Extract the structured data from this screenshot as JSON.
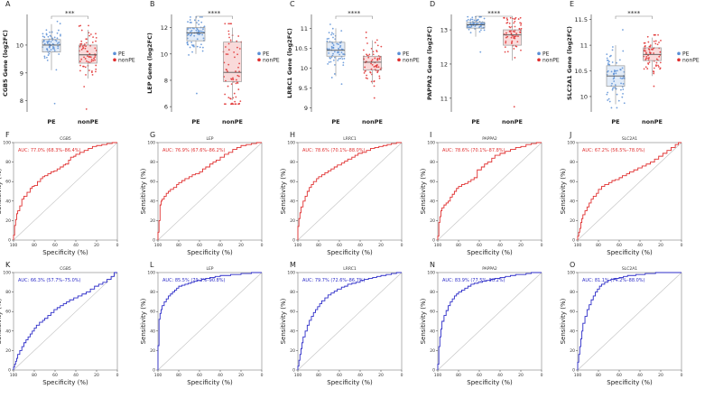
{
  "colors": {
    "pe": "#5b8fd6",
    "nonpe": "#e03030",
    "roc_red": "#e03030",
    "roc_blue": "#2d2dc8",
    "diag": "#c0c0c0",
    "axis": "#333333",
    "box": "#9a9a9a"
  },
  "chart_data": [
    {
      "panel": "A",
      "type": "box",
      "gene": "CGB5",
      "ylabel": "CGB5 Gene (log2FC)",
      "categories": [
        "PE",
        "nonPE"
      ],
      "yticks": [
        8,
        9,
        10
      ],
      "ylim": [
        7.6,
        11.1
      ],
      "series": [
        {
          "name": "PE",
          "q1": 9.75,
          "median": 10.0,
          "q3": 10.2,
          "low": 9.1,
          "high": 10.75,
          "min": 7.9,
          "max": 10.85
        },
        {
          "name": "nonPE",
          "q1": 9.35,
          "median": 9.65,
          "q3": 10.0,
          "low": 8.8,
          "high": 10.55,
          "min": 7.7,
          "max": 10.7
        }
      ],
      "significance": "***",
      "legend": [
        "PE",
        "nonPE"
      ]
    },
    {
      "panel": "B",
      "type": "box",
      "gene": "LEP",
      "ylabel": "LEP Gene (log2FC)",
      "categories": [
        "PE",
        "nonPE"
      ],
      "yticks": [
        6,
        8,
        10,
        12
      ],
      "ylim": [
        5.6,
        13.0
      ],
      "series": [
        {
          "name": "PE",
          "q1": 11.0,
          "median": 11.6,
          "q3": 12.0,
          "low": 10.0,
          "high": 12.7,
          "min": 7.0,
          "max": 12.8
        },
        {
          "name": "nonPE",
          "q1": 7.9,
          "median": 8.6,
          "q3": 10.9,
          "low": 6.5,
          "high": 12.0,
          "min": 6.2,
          "max": 12.3
        }
      ],
      "significance": "****",
      "legend": [
        "PE",
        "nonPE"
      ]
    },
    {
      "panel": "C",
      "type": "box",
      "gene": "LRRC1",
      "ylabel": "LRRC1 Gene (log2FC)",
      "categories": [
        "PE",
        "nonPE"
      ],
      "yticks": [
        9.0,
        9.5,
        10.0,
        10.5,
        11.0
      ],
      "ylim": [
        8.9,
        11.35
      ],
      "series": [
        {
          "name": "PE",
          "q1": 10.3,
          "median": 10.45,
          "q3": 10.65,
          "low": 9.8,
          "high": 11.0,
          "min": 9.6,
          "max": 11.1
        },
        {
          "name": "nonPE",
          "q1": 9.95,
          "median": 10.15,
          "q3": 10.3,
          "low": 9.6,
          "high": 10.7,
          "min": 9.25,
          "max": 10.9
        }
      ],
      "significance": "****",
      "legend": [
        "PE",
        "nonPE"
      ]
    },
    {
      "panel": "D",
      "type": "box",
      "gene": "PAPPA2",
      "ylabel": "PAPPA2 Gene (log2FC)",
      "categories": [
        "PE",
        "nonPE"
      ],
      "yticks": [
        11,
        12,
        13
      ],
      "ylim": [
        10.6,
        13.45
      ],
      "series": [
        {
          "name": "PE",
          "q1": 13.05,
          "median": 13.15,
          "q3": 13.22,
          "low": 12.8,
          "high": 13.35,
          "min": 12.35,
          "max": 13.38
        },
        {
          "name": "nonPE",
          "q1": 12.55,
          "median": 12.85,
          "q3": 13.0,
          "low": 12.1,
          "high": 13.3,
          "min": 10.75,
          "max": 13.35
        }
      ],
      "significance": "****",
      "legend": [
        "PE",
        "nonPE"
      ]
    },
    {
      "panel": "E",
      "type": "box",
      "gene": "SLC2A1",
      "ylabel": "SLC2A1 Gene (log2FC)",
      "categories": [
        "PE",
        "nonPE"
      ],
      "yticks": [
        10.0,
        10.5,
        11.0,
        11.5
      ],
      "ylim": [
        9.7,
        11.6
      ],
      "series": [
        {
          "name": "PE",
          "q1": 10.2,
          "median": 10.4,
          "q3": 10.6,
          "low": 9.85,
          "high": 11.0,
          "min": 9.78,
          "max": 11.3
        },
        {
          "name": "nonPE",
          "q1": 10.7,
          "median": 10.82,
          "q3": 10.95,
          "low": 10.4,
          "high": 11.15,
          "min": 10.2,
          "max": 11.2
        }
      ],
      "significance": "****",
      "legend": [
        "PE",
        "nonPE"
      ]
    },
    {
      "panel": "F",
      "type": "line",
      "subtitle": "CGB5",
      "color": "red",
      "auc": "AUC: 77.0% (68.3%–86.4%)",
      "xlabel": "Specificity (%)",
      "ylabel": "Sensitivity (%)",
      "xticks": [
        "100",
        "80",
        "60",
        "40",
        "20",
        "0"
      ],
      "yticks": [
        "0",
        "20",
        "40",
        "60",
        "80",
        "100"
      ],
      "x": [
        100,
        99,
        99,
        98,
        97,
        96,
        94,
        92,
        90,
        87,
        84,
        82,
        80,
        77,
        74,
        72,
        70,
        67,
        64,
        61,
        58,
        55,
        52,
        50,
        47,
        45,
        42,
        40,
        36,
        32,
        28,
        24,
        20,
        15,
        10,
        5,
        0
      ],
      "y": [
        0,
        5,
        11,
        15,
        21,
        27,
        30,
        35,
        42,
        45,
        49,
        53,
        55,
        56,
        60,
        63,
        65,
        66,
        68,
        70,
        71,
        73,
        75,
        77,
        78,
        82,
        85,
        86,
        88,
        90,
        92,
        94,
        96,
        97,
        98,
        99,
        100
      ]
    },
    {
      "panel": "G",
      "type": "line",
      "subtitle": "LEP",
      "color": "red",
      "auc": "AUC: 76.9% (67.6%–86.2%)",
      "xlabel": "Specificity (%)",
      "ylabel": "Sensitivity (%)",
      "xticks": [
        "100",
        "80",
        "60",
        "40",
        "20",
        "0"
      ],
      "yticks": [
        "0",
        "20",
        "40",
        "60",
        "80",
        "100"
      ],
      "x": [
        100,
        99,
        98,
        98,
        97,
        96,
        94,
        92,
        90,
        88,
        85,
        82,
        80,
        77,
        74,
        70,
        67,
        64,
        60,
        57,
        54,
        50,
        47,
        44,
        40,
        36,
        32,
        28,
        24,
        20,
        15,
        10,
        5,
        0
      ],
      "y": [
        0,
        8,
        20,
        30,
        36,
        40,
        42,
        45,
        48,
        50,
        52,
        54,
        57,
        59,
        61,
        63,
        65,
        67,
        68,
        70,
        73,
        75,
        78,
        80,
        82,
        85,
        88,
        90,
        93,
        95,
        97,
        98,
        99,
        100
      ]
    },
    {
      "panel": "H",
      "type": "line",
      "subtitle": "LRRC1",
      "color": "red",
      "auc": "AUC: 78.6% (70.1%–88.0%)",
      "xlabel": "Specificity (%)",
      "ylabel": "Sensitivity (%)",
      "xticks": [
        "100",
        "80",
        "60",
        "40",
        "20",
        "0"
      ],
      "yticks": [
        "0",
        "20",
        "40",
        "60",
        "80",
        "100"
      ],
      "x": [
        100,
        100,
        99,
        98,
        97,
        95,
        93,
        91,
        89,
        87,
        85,
        82,
        80,
        77,
        74,
        71,
        68,
        65,
        62,
        58,
        55,
        52,
        48,
        45,
        42,
        38,
        34,
        30,
        26,
        22,
        18,
        14,
        10,
        5,
        0
      ],
      "y": [
        0,
        6,
        14,
        22,
        28,
        34,
        40,
        45,
        50,
        54,
        57,
        60,
        63,
        65,
        67,
        69,
        71,
        73,
        75,
        77,
        79,
        81,
        83,
        85,
        87,
        89,
        90,
        92,
        94,
        95,
        96,
        97,
        98,
        99,
        100
      ]
    },
    {
      "panel": "I",
      "type": "line",
      "subtitle": "PAPPA2",
      "color": "red",
      "auc": "AUC: 78.6% (70.1%–87.8%)",
      "xlabel": "Specificity (%)",
      "ylabel": "Sensitivity (%)",
      "xticks": [
        "100",
        "80",
        "60",
        "40",
        "20",
        "0"
      ],
      "yticks": [
        "0",
        "20",
        "40",
        "60",
        "80",
        "100"
      ],
      "x": [
        100,
        99,
        99,
        98,
        97,
        96,
        94,
        92,
        90,
        88,
        86,
        84,
        82,
        80,
        77,
        74,
        71,
        68,
        65,
        62,
        58,
        55,
        52,
        48,
        45,
        40,
        35,
        30,
        25,
        20,
        15,
        10,
        5,
        0
      ],
      "y": [
        0,
        4,
        10,
        18,
        24,
        30,
        33,
        36,
        38,
        40,
        44,
        47,
        50,
        53,
        55,
        57,
        58,
        60,
        62,
        64,
        72,
        75,
        78,
        80,
        84,
        87,
        89,
        91,
        93,
        95,
        96,
        98,
        99,
        100
      ]
    },
    {
      "panel": "J",
      "type": "line",
      "subtitle": "SLC2A1",
      "color": "red",
      "auc": "AUC: 67.2% (56.5%–78.0%)",
      "xlabel": "Specificity (%)",
      "ylabel": "Sensitivity (%)",
      "xticks": [
        "100",
        "80",
        "60",
        "40",
        "20",
        "0"
      ],
      "yticks": [
        "0",
        "20",
        "40",
        "60",
        "80",
        "100"
      ],
      "x": [
        100,
        99,
        98,
        97,
        96,
        95,
        93,
        91,
        89,
        87,
        85,
        82,
        80,
        77,
        74,
        70,
        67,
        64,
        60,
        57,
        53,
        50,
        46,
        42,
        38,
        34,
        30,
        26,
        22,
        18,
        14,
        10,
        6,
        3,
        0
      ],
      "y": [
        0,
        4,
        8,
        12,
        18,
        22,
        26,
        30,
        34,
        38,
        42,
        45,
        48,
        52,
        55,
        57,
        59,
        61,
        62,
        64,
        66,
        68,
        70,
        72,
        74,
        76,
        78,
        80,
        83,
        86,
        89,
        92,
        95,
        98,
        100
      ]
    },
    {
      "panel": "K",
      "type": "line",
      "subtitle": "CGB5",
      "color": "blue",
      "auc": "AUC: 66.3% (57.7%–75.0%)",
      "xlabel": "Specificity (%)",
      "ylabel": "Sensitivity (%)",
      "xticks": [
        "100",
        "80",
        "60",
        "40",
        "20",
        "0"
      ],
      "yticks": [
        "0",
        "20",
        "40",
        "60",
        "80",
        "100"
      ],
      "x": [
        100,
        99,
        98,
        97,
        96,
        94,
        92,
        90,
        88,
        86,
        84,
        82,
        80,
        78,
        75,
        72,
        70,
        67,
        64,
        61,
        58,
        55,
        52,
        49,
        46,
        42,
        38,
        34,
        30,
        26,
        22,
        18,
        14,
        10,
        6,
        3,
        0
      ],
      "y": [
        0,
        3,
        6,
        9,
        12,
        16,
        20,
        24,
        28,
        31,
        34,
        37,
        40,
        43,
        46,
        49,
        51,
        53,
        56,
        59,
        62,
        64,
        66,
        68,
        70,
        72,
        74,
        76,
        78,
        80,
        83,
        86,
        88,
        90,
        93,
        96,
        100
      ]
    },
    {
      "panel": "L",
      "type": "line",
      "subtitle": "LEP",
      "color": "blue",
      "auc": "AUC: 85.5% (79.2%–90.8%)",
      "xlabel": "Specificity (%)",
      "ylabel": "Sensitivity (%)",
      "xticks": [
        "100",
        "80",
        "60",
        "40",
        "20",
        "0"
      ],
      "yticks": [
        "0",
        "20",
        "40",
        "60",
        "80",
        "100"
      ],
      "x": [
        100,
        100,
        99,
        99,
        98,
        97,
        96,
        94,
        92,
        90,
        88,
        86,
        84,
        82,
        80,
        77,
        74,
        71,
        68,
        65,
        62,
        58,
        54,
        50,
        45,
        40,
        35,
        30,
        25,
        20,
        15,
        10,
        5,
        0
      ],
      "y": [
        0,
        10,
        25,
        40,
        52,
        58,
        62,
        66,
        70,
        73,
        76,
        78,
        80,
        82,
        84,
        86,
        87,
        88,
        89,
        90,
        91,
        92,
        93,
        94,
        95,
        96,
        97,
        97,
        98,
        98,
        99,
        99,
        100,
        100
      ]
    },
    {
      "panel": "M",
      "type": "line",
      "subtitle": "LRRC1",
      "color": "blue",
      "auc": "AUC: 79.7% (72.6%–86.7%)",
      "xlabel": "Specificity (%)",
      "ylabel": "Sensitivity (%)",
      "xticks": [
        "100",
        "80",
        "60",
        "40",
        "20",
        "0"
      ],
      "yticks": [
        "0",
        "20",
        "40",
        "60",
        "80",
        "100"
      ],
      "x": [
        100,
        99,
        98,
        97,
        96,
        95,
        93,
        91,
        89,
        87,
        85,
        83,
        81,
        79,
        77,
        74,
        71,
        68,
        65,
        62,
        58,
        55,
        52,
        48,
        44,
        40,
        36,
        32,
        28,
        24,
        20,
        15,
        10,
        5,
        0
      ],
      "y": [
        0,
        4,
        10,
        16,
        22,
        28,
        34,
        40,
        46,
        51,
        55,
        59,
        62,
        65,
        68,
        71,
        74,
        77,
        79,
        81,
        83,
        85,
        86,
        88,
        89,
        90,
        92,
        93,
        94,
        95,
        96,
        97,
        98,
        99,
        100
      ]
    },
    {
      "panel": "N",
      "type": "line",
      "subtitle": "PAPPA2",
      "color": "blue",
      "auc": "AUC: 83.9% (77.5%–90.2%)",
      "xlabel": "Specificity (%)",
      "ylabel": "Sensitivity (%)",
      "xticks": [
        "100",
        "80",
        "60",
        "40",
        "20",
        "0"
      ],
      "yticks": [
        "0",
        "20",
        "40",
        "60",
        "80",
        "100"
      ],
      "x": [
        100,
        99,
        99,
        98,
        97,
        96,
        94,
        92,
        90,
        88,
        86,
        84,
        82,
        80,
        77,
        74,
        71,
        68,
        65,
        61,
        57,
        53,
        49,
        45,
        40,
        35,
        30,
        25,
        20,
        15,
        10,
        5,
        0
      ],
      "y": [
        0,
        6,
        14,
        24,
        34,
        42,
        50,
        56,
        61,
        66,
        70,
        73,
        76,
        78,
        80,
        82,
        84,
        86,
        88,
        89,
        90,
        91,
        92,
        93,
        94,
        95,
        96,
        97,
        98,
        98,
        99,
        100,
        100
      ]
    },
    {
      "panel": "O",
      "type": "line",
      "subtitle": "SLC2A1",
      "color": "blue",
      "auc": "AUC: 81.1% (74.2%–88.0%)",
      "xlabel": "Specificity (%)",
      "ylabel": "Sensitivity (%)",
      "xticks": [
        "100",
        "80",
        "60",
        "40",
        "20",
        "0"
      ],
      "yticks": [
        "0",
        "20",
        "40",
        "60",
        "80",
        "100"
      ],
      "x": [
        100,
        99,
        98,
        97,
        96,
        95,
        93,
        91,
        89,
        87,
        85,
        83,
        81,
        79,
        77,
        74,
        71,
        68,
        64,
        60,
        56,
        52,
        48,
        44,
        40,
        35,
        30,
        25,
        20,
        15,
        10,
        5,
        0
      ],
      "y": [
        0,
        8,
        16,
        24,
        32,
        40,
        48,
        55,
        62,
        67,
        72,
        76,
        80,
        83,
        86,
        88,
        90,
        92,
        93,
        94,
        95,
        96,
        97,
        97,
        98,
        98,
        99,
        99,
        100,
        100,
        100,
        100,
        100
      ]
    }
  ]
}
